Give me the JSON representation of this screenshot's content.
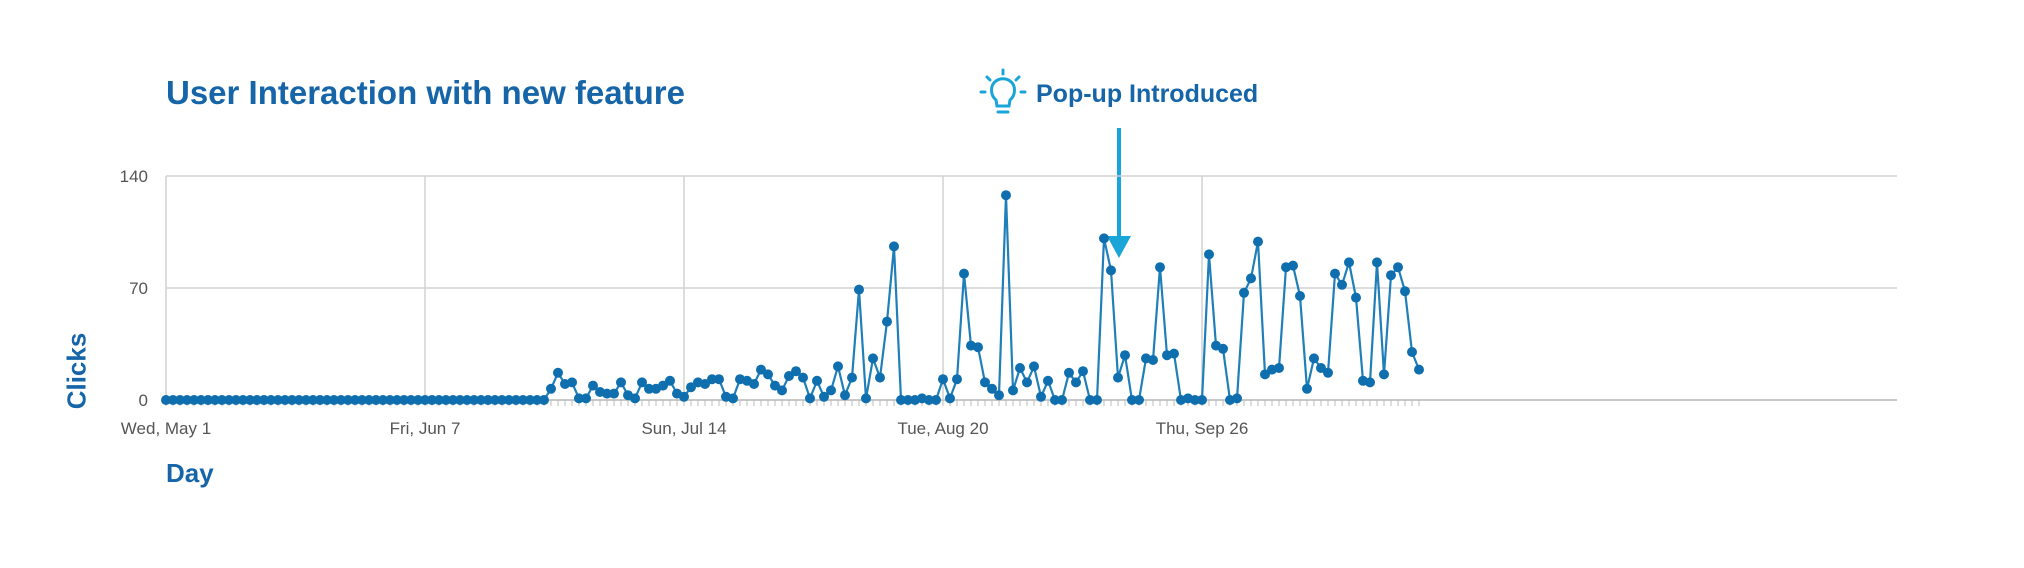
{
  "colors": {
    "accent": "#1565a8",
    "line": "#1f7fb8",
    "annotation": "#1aa5d8",
    "grid": "#cfcfcf"
  },
  "annotation": {
    "label": "Pop-up Introduced",
    "icon": "lightbulb-icon",
    "day_index": 80
  },
  "chart_data": {
    "type": "line",
    "title": "User Interaction with new feature",
    "xlabel": "Day",
    "ylabel": "Clicks",
    "ylim": [
      0,
      140
    ],
    "yticks": [
      0,
      70,
      140
    ],
    "ytick_labels": [
      "0",
      "70",
      "140"
    ],
    "xticks": [
      {
        "label": "Wed, May 1",
        "day_index": 0
      },
      {
        "label": "Fri, Jun 7",
        "day_index": 37
      },
      {
        "label": "Sun, Jul 14",
        "day_index": 74
      },
      {
        "label": "Tue, Aug 20",
        "day_index": 111
      },
      {
        "label": "Thu, Sep 26",
        "day_index": 148
      }
    ],
    "grid": true,
    "series": [
      {
        "name": "Clicks",
        "start_date": "May 1",
        "values": [
          0,
          0,
          0,
          0,
          0,
          0,
          0,
          0,
          0,
          0,
          0,
          0,
          0,
          0,
          0,
          0,
          0,
          0,
          0,
          0,
          0,
          0,
          0,
          0,
          0,
          0,
          0,
          0,
          0,
          0,
          0,
          0,
          0,
          0,
          0,
          0,
          0,
          0,
          0,
          0,
          0,
          0,
          0,
          0,
          0,
          0,
          0,
          0,
          0,
          0,
          0,
          0,
          0,
          0,
          0,
          7,
          17,
          10,
          11,
          1,
          1,
          9,
          5,
          4,
          4,
          11,
          3,
          1,
          11,
          7,
          7,
          9,
          12,
          4,
          2,
          8,
          11,
          10,
          13,
          13,
          2,
          1,
          13,
          12,
          10,
          19,
          16,
          9,
          6,
          15,
          18,
          14,
          1,
          12,
          2,
          6,
          21,
          3,
          14,
          69,
          1,
          26,
          14,
          49,
          96,
          0,
          0,
          0,
          1,
          0,
          0,
          13,
          1,
          13,
          79,
          34,
          33,
          11,
          7,
          3,
          128,
          6,
          20,
          11,
          21,
          2,
          12,
          0,
          0,
          17,
          11,
          18,
          0,
          0,
          101,
          81,
          14,
          28,
          0,
          0,
          26,
          25,
          83,
          28,
          29,
          0,
          1,
          0,
          0,
          91,
          34,
          32,
          0,
          1,
          67,
          76,
          99,
          16,
          19,
          20,
          83,
          84,
          65,
          7,
          26,
          20,
          17,
          79,
          72,
          86,
          64,
          12,
          11,
          86,
          16,
          78,
          83,
          68,
          30,
          19
        ]
      }
    ]
  }
}
